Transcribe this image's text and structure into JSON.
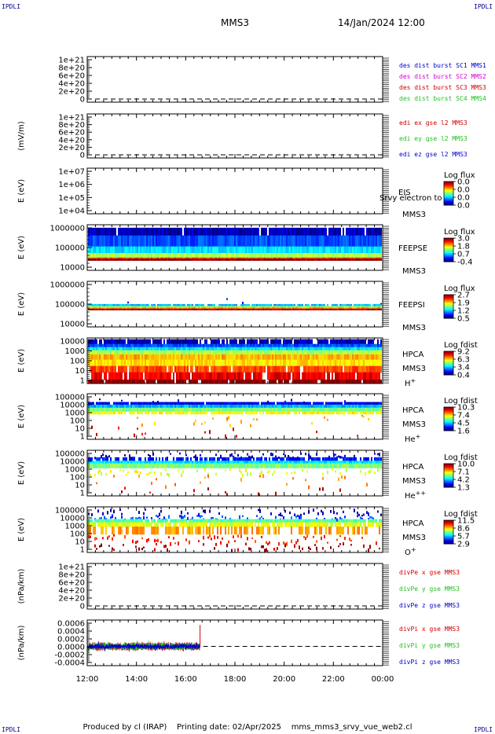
{
  "header": {
    "corner_label": "IPDLI",
    "spacecraft": "MMS3",
    "datetime": "14/Jan/2024 12:00"
  },
  "footer": {
    "produced_by": "Produced by cl (IRAP)",
    "printing_date": "Printing date: 02/Apr/2025",
    "script_name": "mms_mms3_srvy_vue_web2.cl"
  },
  "time_axis": {
    "ticks": [
      "12:00",
      "14:00",
      "16:00",
      "18:00",
      "20:00",
      "22:00",
      "00:00"
    ],
    "start": "12:00",
    "end": "00:00",
    "data_end": "16:35"
  },
  "colors": {
    "red": "#d40000",
    "green": "#22c022",
    "blue": "#0000cc",
    "magenta": "#d400d4"
  },
  "chart_data": [
    {
      "id": "des-dist",
      "type": "line",
      "ylabel": "",
      "yticks": [
        "1e+21",
        "8e+20",
        "6e+20",
        "4e+20",
        "2e+20",
        "0"
      ],
      "ylim": [
        0,
        1e+21
      ],
      "series": [
        {
          "name": "des dist burst SC1 MMS1",
          "color": "#0000cc"
        },
        {
          "name": "des dist burst SC2 MMS2",
          "color": "#d400d4"
        },
        {
          "name": "des dist burst SC3 MMS3",
          "color": "#d40000"
        },
        {
          "name": "des dist burst SC4 MMS4",
          "color": "#22c022"
        }
      ],
      "zero_line": true
    },
    {
      "id": "edi-e",
      "type": "line",
      "ylabel": "(mV/m)",
      "yticks": [
        "1e+21",
        "8e+20",
        "6e+20",
        "4e+20",
        "2e+20",
        "0"
      ],
      "ylim": [
        0,
        1e+21
      ],
      "series": [
        {
          "name": "edi ex gse l2 MMS3",
          "color": "#d40000"
        },
        {
          "name": "edi ey gse l2 MMS3",
          "color": "#22c022"
        },
        {
          "name": "edi ez gse l2 MMS3",
          "color": "#0000cc"
        }
      ],
      "zero_line": true
    },
    {
      "id": "eis",
      "type": "heatmap",
      "ylabel": "E (eV)",
      "yticks": [
        "1e+07",
        "1e+06",
        "1e+05",
        "1e+04"
      ],
      "ylog": [
        4,
        7
      ],
      "instrument": "EIS",
      "overlay_text": "Srvy electron to",
      "sc": "MMS3",
      "colorbar": {
        "title": "Log flux",
        "ticks": [
          "0.0",
          "0.0",
          "0.0",
          "0.0"
        ]
      },
      "bands": []
    },
    {
      "id": "feepse",
      "type": "heatmap",
      "ylabel": "E (eV)",
      "yticks": [
        "1000000",
        "100000",
        "10000"
      ],
      "ylog": [
        4,
        6
      ],
      "instrument": "FEEPSE",
      "sc": "MMS3",
      "colorbar": {
        "title": "Log flux",
        "ticks": [
          "3.0",
          "1.8",
          "0.7",
          "-0.4"
        ]
      },
      "bands": [
        {
          "from": 5.9,
          "to": 5.55,
          "level": 0.05,
          "density": 0.97
        },
        {
          "from": 5.55,
          "to": 5.05,
          "level": 0.2,
          "density": 0.99
        },
        {
          "from": 5.05,
          "to": 4.75,
          "level": 0.35,
          "density": 1.0
        },
        {
          "from": 4.75,
          "to": 4.55,
          "level": 0.55,
          "density": 1.0
        },
        {
          "from": 4.55,
          "to": 4.5,
          "level": 0.8,
          "density": 1.0
        },
        {
          "from": 4.5,
          "to": 4.42,
          "level": 0.98,
          "density": 1.0
        }
      ]
    },
    {
      "id": "feepsi",
      "type": "heatmap",
      "ylabel": "E (eV)",
      "yticks": [
        "1000000",
        "100000",
        "10000"
      ],
      "ylog": [
        4,
        6
      ],
      "instrument": "FEEPSI",
      "sc": "MMS3",
      "colorbar": {
        "title": "Log flux",
        "ticks": [
          "2.7",
          "1.9",
          "1.2",
          "0.5"
        ]
      },
      "bands": [
        {
          "from": 5.4,
          "to": 5.0,
          "level": 0.15,
          "density": 0.03
        },
        {
          "from": 5.0,
          "to": 4.92,
          "level": 0.3,
          "density": 0.9
        },
        {
          "from": 4.92,
          "to": 4.87,
          "level": 0.5,
          "density": 1.0
        },
        {
          "from": 4.87,
          "to": 4.8,
          "level": 0.7,
          "density": 1.0
        },
        {
          "from": 4.8,
          "to": 4.74,
          "level": 0.95,
          "density": 1.0
        }
      ]
    },
    {
      "id": "hpca-h",
      "type": "heatmap",
      "ylabel": "E (eV)",
      "yticks": [
        "10000",
        "1000",
        "100",
        "10",
        "1"
      ],
      "ylog": [
        0,
        4.2
      ],
      "instrument": "HPCA",
      "sc": "MMS3",
      "species": "H+",
      "colorbar": {
        "title": "Log fdist",
        "ticks": [
          "9.2",
          "6.3",
          "3.4",
          "0.4"
        ]
      },
      "bands": [
        {
          "from": 4.15,
          "to": 3.7,
          "level": 0.05,
          "density": 0.85
        },
        {
          "from": 3.7,
          "to": 3.4,
          "level": 0.2,
          "density": 1.0
        },
        {
          "from": 3.4,
          "to": 3.1,
          "level": 0.35,
          "density": 1.0
        },
        {
          "from": 3.1,
          "to": 2.7,
          "level": 0.55,
          "density": 1.0
        },
        {
          "from": 2.7,
          "to": 2.2,
          "level": 0.7,
          "density": 1.0
        },
        {
          "from": 2.2,
          "to": 1.6,
          "level": 0.65,
          "density": 1.0
        },
        {
          "from": 1.6,
          "to": 1.0,
          "level": 0.8,
          "density": 0.9
        },
        {
          "from": 1.0,
          "to": 0.3,
          "level": 0.9,
          "density": 0.85
        },
        {
          "from": 0.3,
          "to": 0.0,
          "level": 1.0,
          "density": 0.9
        }
      ]
    },
    {
      "id": "hpca-he",
      "type": "heatmap",
      "ylabel": "E (eV)",
      "yticks": [
        "100000",
        "10000",
        "1000",
        "100",
        "10",
        "1"
      ],
      "ylog": [
        0,
        5
      ],
      "instrument": "HPCA",
      "sc": "MMS3",
      "species": "He+",
      "colorbar": {
        "title": "Log fdist",
        "ticks": [
          "10.3",
          "7.4",
          "4.5",
          "1.6"
        ]
      },
      "bands": [
        {
          "from": 4.6,
          "to": 4.2,
          "level": 0.05,
          "density": 0.08
        },
        {
          "from": 4.15,
          "to": 3.85,
          "level": 0.1,
          "density": 0.95
        },
        {
          "from": 3.85,
          "to": 3.5,
          "level": 0.3,
          "density": 1.0
        },
        {
          "from": 3.5,
          "to": 3.1,
          "level": 0.5,
          "density": 1.0
        },
        {
          "from": 3.1,
          "to": 2.8,
          "level": 0.62,
          "density": 0.9
        },
        {
          "from": 2.8,
          "to": 1.5,
          "level": 0.7,
          "density": 0.08
        },
        {
          "from": 1.5,
          "to": 0.3,
          "level": 0.9,
          "density": 0.05
        }
      ]
    },
    {
      "id": "hpca-he2",
      "type": "heatmap",
      "ylabel": "E (eV)",
      "yticks": [
        "100000",
        "10000",
        "1000",
        "100",
        "10",
        "1"
      ],
      "ylog": [
        0,
        5
      ],
      "instrument": "HPCA",
      "sc": "MMS3",
      "species": "He++",
      "colorbar": {
        "title": "Log fdist",
        "ticks": [
          "10.0",
          "7.1",
          "4.2",
          "1.3"
        ]
      },
      "bands": [
        {
          "from": 4.85,
          "to": 4.3,
          "level": 0.05,
          "density": 0.35
        },
        {
          "from": 4.3,
          "to": 3.9,
          "level": 0.15,
          "density": 0.7
        },
        {
          "from": 3.9,
          "to": 3.6,
          "level": 0.35,
          "density": 1.0
        },
        {
          "from": 3.6,
          "to": 3.1,
          "level": 0.5,
          "density": 1.0
        },
        {
          "from": 3.1,
          "to": 2.4,
          "level": 0.6,
          "density": 0.3
        },
        {
          "from": 2.4,
          "to": 1.0,
          "level": 0.75,
          "density": 0.1
        },
        {
          "from": 1.0,
          "to": 0.2,
          "level": 0.95,
          "density": 0.06
        }
      ]
    },
    {
      "id": "hpca-o",
      "type": "heatmap",
      "ylabel": "E (eV)",
      "yticks": [
        "100000",
        "10000",
        "1000",
        "100",
        "10",
        "1"
      ],
      "ylog": [
        0,
        5
      ],
      "instrument": "HPCA",
      "sc": "MMS3",
      "species": "O+",
      "colorbar": {
        "title": "Log fdist",
        "ticks": [
          "11.5",
          "8.6",
          "5.7",
          "2.9"
        ]
      },
      "bands": [
        {
          "from": 4.9,
          "to": 4.2,
          "level": 0.05,
          "density": 0.25
        },
        {
          "from": 4.2,
          "to": 3.7,
          "level": 0.2,
          "density": 0.45
        },
        {
          "from": 3.7,
          "to": 3.35,
          "level": 0.45,
          "density": 0.95
        },
        {
          "from": 3.35,
          "to": 2.85,
          "level": 0.6,
          "density": 0.9
        },
        {
          "from": 2.85,
          "to": 2.0,
          "level": 0.72,
          "density": 0.55
        },
        {
          "from": 2.0,
          "to": 1.0,
          "level": 0.85,
          "density": 0.35
        },
        {
          "from": 1.0,
          "to": 0.3,
          "level": 0.97,
          "density": 0.25
        }
      ]
    },
    {
      "id": "divpe",
      "type": "line",
      "ylabel": "(nPa/km)",
      "yticks": [
        "1e+21",
        "8e+20",
        "6e+20",
        "4e+20",
        "2e+20",
        "0"
      ],
      "ylim": [
        0,
        1e+21
      ],
      "series": [
        {
          "name": "divPe x gse MMS3",
          "color": "#d40000"
        },
        {
          "name": "divPe y gse MMS3",
          "color": "#22c022"
        },
        {
          "name": "divPe z gse MMS3",
          "color": "#0000cc"
        }
      ],
      "zero_line": true
    },
    {
      "id": "divpi",
      "type": "line",
      "ylabel": "(nPa/km)",
      "yticks": [
        "0.0006",
        "0.0004",
        "0.0002",
        "0.0000",
        "-0.0002",
        "-0.0004"
      ],
      "ylim": [
        -0.00045,
        0.00065
      ],
      "series": [
        {
          "name": "divPi x gse MMS3",
          "color": "#d40000",
          "spread": 0.00012
        },
        {
          "name": "divPi y gse MMS3",
          "color": "#22c022",
          "spread": 0.0001
        },
        {
          "name": "divPi z gse MMS3",
          "color": "#0000cc",
          "spread": 7e-05
        }
      ],
      "spike": {
        "time": "16:35",
        "value": 0.0006
      },
      "zero_line": true
    }
  ]
}
